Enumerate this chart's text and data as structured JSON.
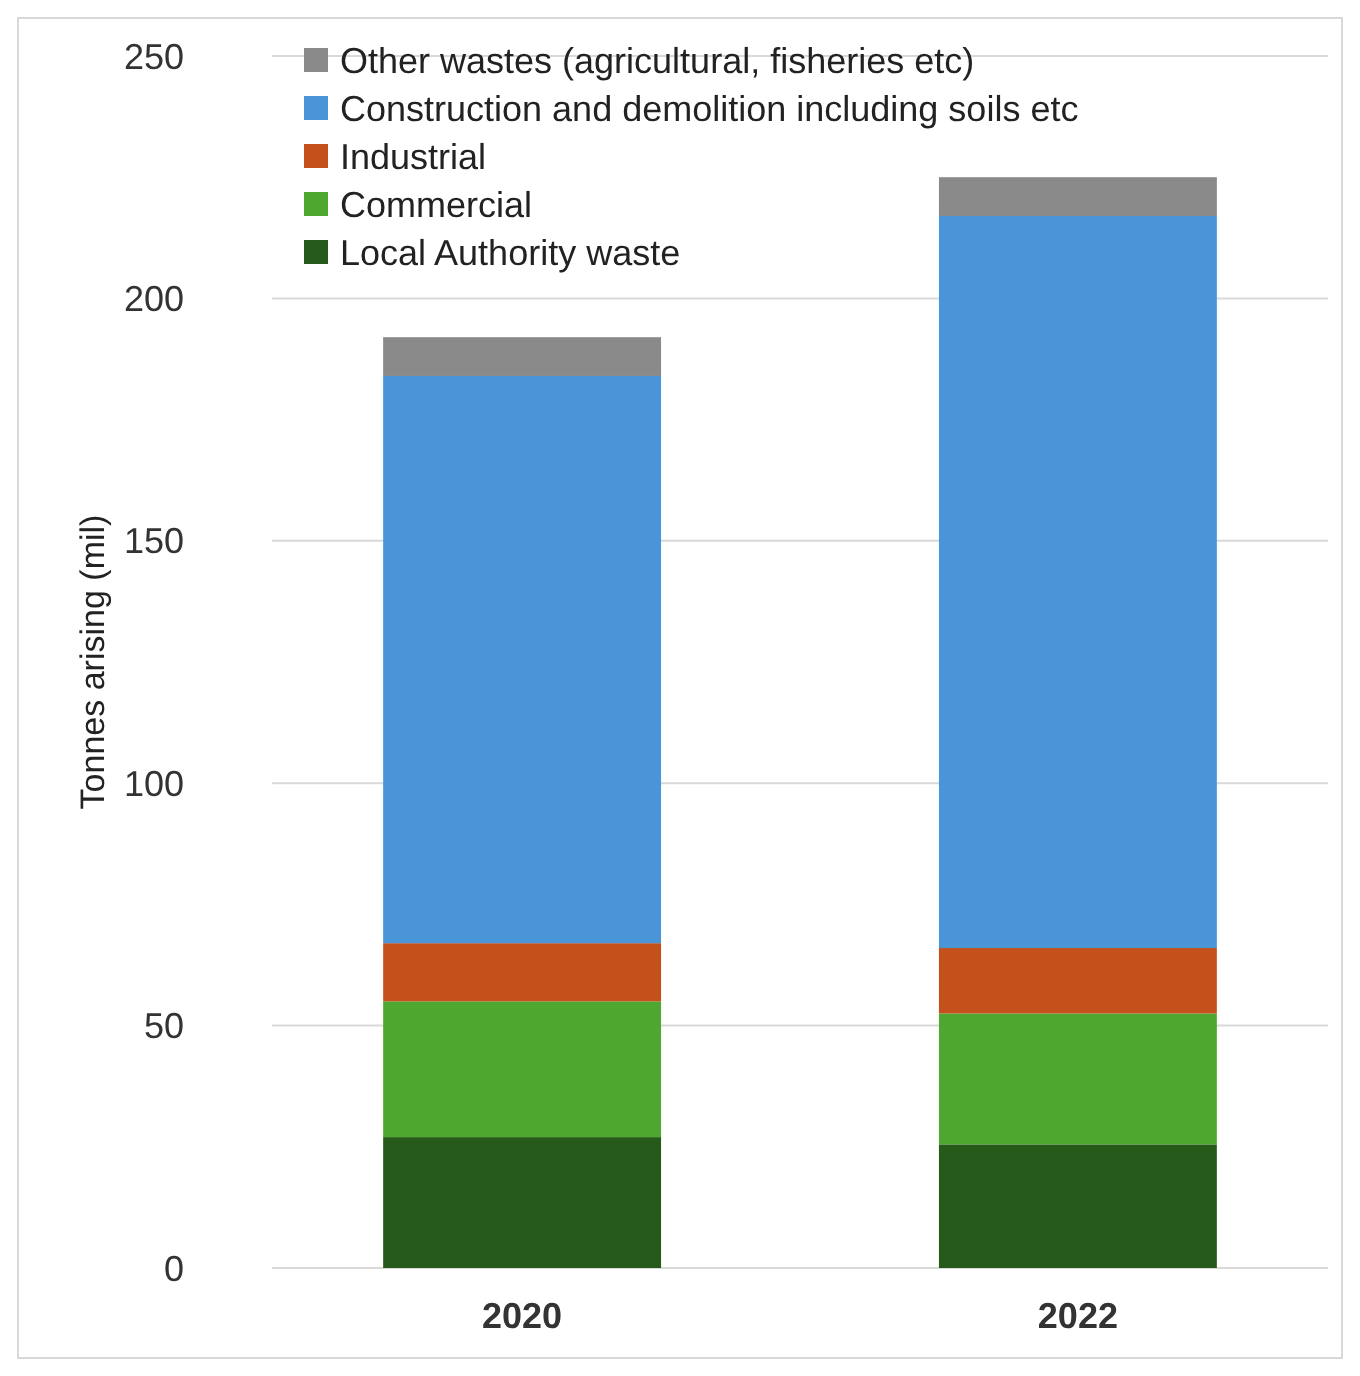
{
  "chart_data": {
    "type": "bar",
    "stacked": true,
    "ylabel": "Tonnes arising (mil)",
    "categories": [
      "2020",
      "2022"
    ],
    "series": [
      {
        "name": "Local Authority waste",
        "color": "#265a1b",
        "values": [
          27,
          25.5
        ]
      },
      {
        "name": "Commercial",
        "color": "#4ea72e",
        "values": [
          28,
          27
        ]
      },
      {
        "name": "Industrial",
        "color": "#c4501b",
        "values": [
          12,
          13.5
        ]
      },
      {
        "name": "Construction and demolition including soils etc",
        "color": "#4a94d8",
        "values": [
          117,
          151
        ]
      },
      {
        "name": "Other wastes (agricultural, fisheries etc)",
        "color": "#8a8a8a",
        "values": [
          8,
          8
        ]
      }
    ],
    "ylim": [
      0,
      250
    ],
    "yticks": [
      0,
      50,
      100,
      150,
      200,
      250
    ],
    "grid": "y",
    "legend": "top left"
  }
}
